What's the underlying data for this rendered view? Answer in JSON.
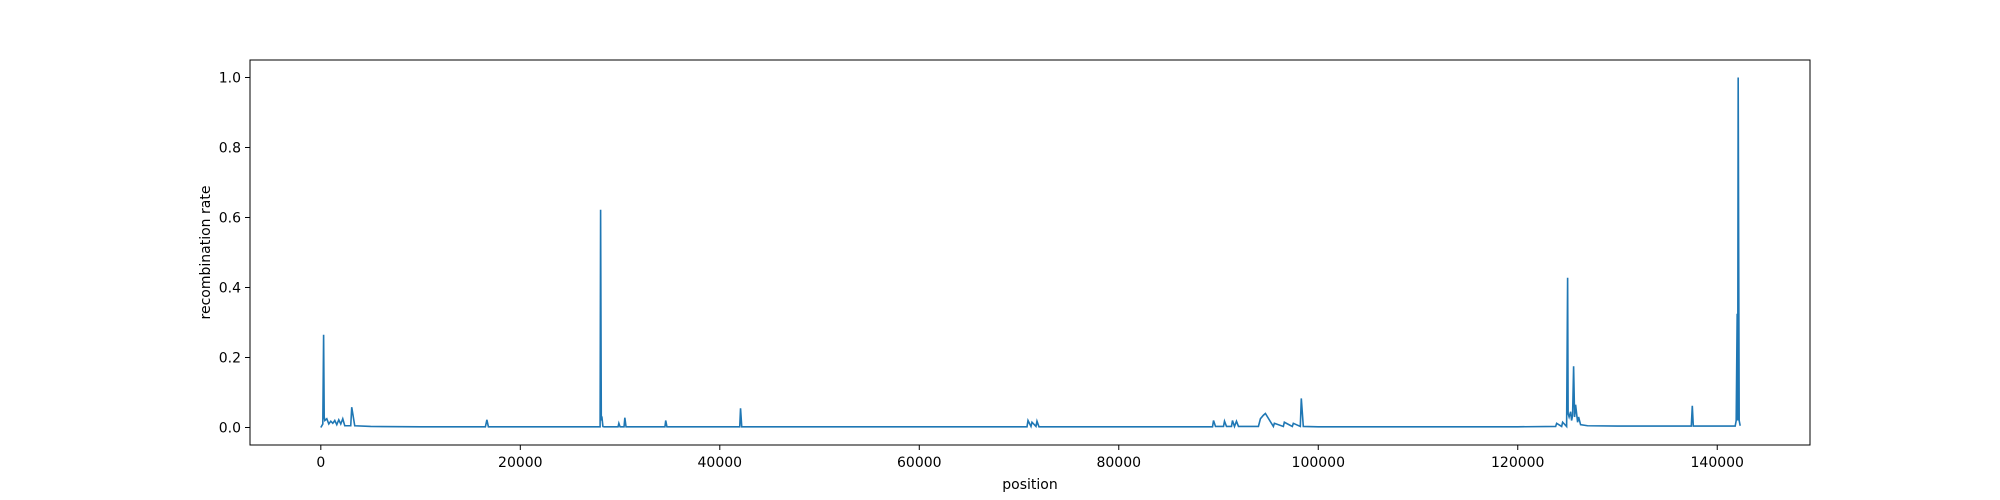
{
  "chart_data": {
    "type": "line",
    "title": "",
    "xlabel": "position",
    "ylabel": "recombination rate",
    "xlim": [
      -7100,
      149300
    ],
    "ylim": [
      -0.05,
      1.05
    ],
    "xticks": [
      0,
      20000,
      40000,
      60000,
      80000,
      100000,
      120000,
      140000
    ],
    "xtick_labels": [
      "0",
      "20000",
      "40000",
      "60000",
      "80000",
      "100000",
      "120000",
      "140000"
    ],
    "yticks": [
      0.0,
      0.2,
      0.4,
      0.6,
      0.8,
      1.0
    ],
    "ytick_labels": [
      "0.0",
      "0.2",
      "0.4",
      "0.6",
      "0.8",
      "1.0"
    ],
    "grid": false,
    "line_color": "#1f77b4",
    "series": [
      {
        "x": [
          0,
          200,
          280,
          340,
          400,
          600,
          800,
          1000,
          1200,
          1400,
          1600,
          1800,
          2000,
          2200,
          2400,
          3000,
          3100,
          3400,
          5000,
          10000,
          16500,
          16650,
          16800,
          20000,
          27000,
          28000,
          28050,
          28120,
          28200,
          28280,
          28400,
          29800,
          29880,
          30000,
          30400,
          30480,
          30600,
          34500,
          34580,
          34700,
          42000,
          42080,
          42200,
          50000,
          60000,
          70800,
          70900,
          71200,
          71300,
          71700,
          71800,
          72000,
          80000,
          88000,
          89400,
          89500,
          89700,
          90500,
          90600,
          90800,
          91300,
          91400,
          91600,
          91800,
          92000,
          94000,
          94200,
          94500,
          94700,
          95500,
          95600,
          96500,
          96600,
          97400,
          97500,
          98200,
          98300,
          98500,
          100000,
          110000,
          120000,
          123800,
          123900,
          124400,
          124500,
          124900,
          125000,
          125050,
          125150,
          125300,
          125400,
          125500,
          125600,
          125700,
          125800,
          126000,
          126100,
          126300,
          127000,
          130000,
          136000,
          137400,
          137500,
          137600,
          140000,
          141800,
          141900,
          142000,
          142050,
          142100,
          142200,
          142300
        ],
        "y": [
          0.0,
          0.01,
          0.265,
          0.03,
          0.02,
          0.025,
          0.01,
          0.018,
          0.012,
          0.02,
          0.008,
          0.022,
          0.01,
          0.025,
          0.005,
          0.005,
          0.058,
          0.005,
          0.003,
          0.002,
          0.002,
          0.022,
          0.002,
          0.002,
          0.002,
          0.002,
          0.622,
          0.02,
          0.025,
          0.003,
          0.002,
          0.002,
          0.012,
          0.002,
          0.002,
          0.028,
          0.002,
          0.002,
          0.02,
          0.002,
          0.002,
          0.055,
          0.002,
          0.002,
          0.002,
          0.002,
          0.02,
          0.003,
          0.015,
          0.003,
          0.018,
          0.002,
          0.002,
          0.002,
          0.002,
          0.02,
          0.003,
          0.003,
          0.018,
          0.003,
          0.003,
          0.02,
          0.003,
          0.018,
          0.003,
          0.003,
          0.025,
          0.035,
          0.04,
          0.003,
          0.012,
          0.003,
          0.015,
          0.003,
          0.012,
          0.003,
          0.083,
          0.003,
          0.002,
          0.002,
          0.002,
          0.003,
          0.012,
          0.003,
          0.015,
          0.003,
          0.428,
          0.04,
          0.03,
          0.045,
          0.02,
          0.035,
          0.175,
          0.03,
          0.065,
          0.015,
          0.03,
          0.008,
          0.005,
          0.004,
          0.004,
          0.004,
          0.062,
          0.004,
          0.004,
          0.004,
          0.02,
          0.325,
          0.02,
          1.0,
          0.02,
          0.005
        ]
      }
    ]
  }
}
